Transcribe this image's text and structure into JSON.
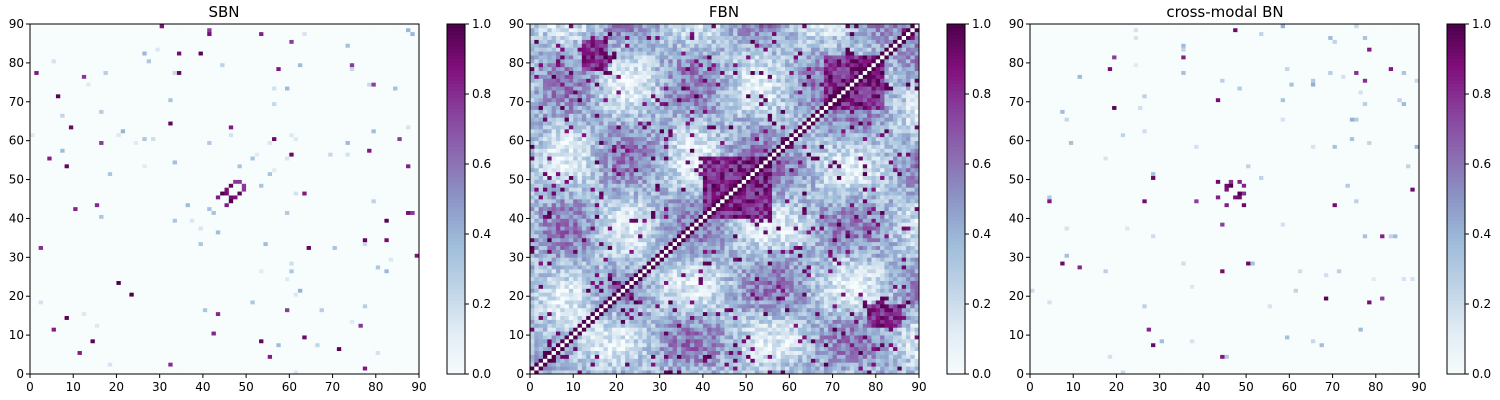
{
  "chart_data": [
    {
      "type": "heatmap",
      "id": "sbn",
      "title": "SBN",
      "n": 90,
      "xlim": [
        0,
        90
      ],
      "ylim": [
        0,
        90
      ],
      "xticks": [
        0,
        10,
        20,
        30,
        40,
        50,
        60,
        70,
        80,
        90
      ],
      "yticks": [
        0,
        10,
        20,
        30,
        40,
        50,
        60,
        70,
        80,
        90
      ],
      "colorbar": {
        "range": [
          0.0,
          1.0
        ],
        "ticks": [
          "0.0",
          "0.2",
          "0.4",
          "0.6",
          "0.8",
          "1.0"
        ]
      },
      "pattern": {
        "kind": "sparse",
        "density": 0.006,
        "strong_blocks": [
          [
            43,
            50,
            43,
            50
          ]
        ],
        "seed": 11
      }
    },
    {
      "type": "heatmap",
      "id": "fbn",
      "title": "FBN",
      "n": 90,
      "xlim": [
        0,
        90
      ],
      "ylim": [
        0,
        90
      ],
      "xticks": [
        0,
        10,
        20,
        30,
        40,
        50,
        60,
        70,
        80,
        90
      ],
      "yticks": [
        0,
        10,
        20,
        30,
        40,
        50,
        60,
        70,
        80,
        90
      ],
      "colorbar": {
        "range": [
          0.0,
          1.0
        ],
        "ticks": [
          "0.0",
          "0.2",
          "0.4",
          "0.6",
          "0.8",
          "1.0"
        ]
      },
      "pattern": {
        "kind": "dense",
        "diagonal": true,
        "strong_blocks": [
          [
            40,
            56,
            40,
            56
          ],
          [
            68,
            82,
            68,
            82
          ],
          [
            12,
            18,
            78,
            86
          ]
        ],
        "seed": 23
      }
    },
    {
      "type": "heatmap",
      "id": "cross",
      "title": "cross-modal BN",
      "n": 90,
      "xlim": [
        0,
        90
      ],
      "ylim": [
        0,
        90
      ],
      "xticks": [
        0,
        10,
        20,
        30,
        40,
        50,
        60,
        70,
        80,
        90
      ],
      "yticks": [
        0,
        10,
        20,
        30,
        40,
        50,
        60,
        70,
        80,
        90
      ],
      "colorbar": {
        "range": [
          0.0,
          1.0
        ],
        "ticks": [
          "0.0",
          "0.2",
          "0.4",
          "0.6",
          "0.8",
          "1.0"
        ]
      },
      "pattern": {
        "kind": "sparse",
        "density": 0.005,
        "strong_blocks": [
          [
            43,
            50,
            43,
            50
          ]
        ],
        "seed": 37
      }
    }
  ],
  "colormap": {
    "name": "BuPu",
    "stops": [
      "#f7fcfd",
      "#e0ecf4",
      "#bfd3e6",
      "#9ebcda",
      "#8c96c6",
      "#8c6bb1",
      "#88419d",
      "#810f7c",
      "#4d004b"
    ]
  }
}
